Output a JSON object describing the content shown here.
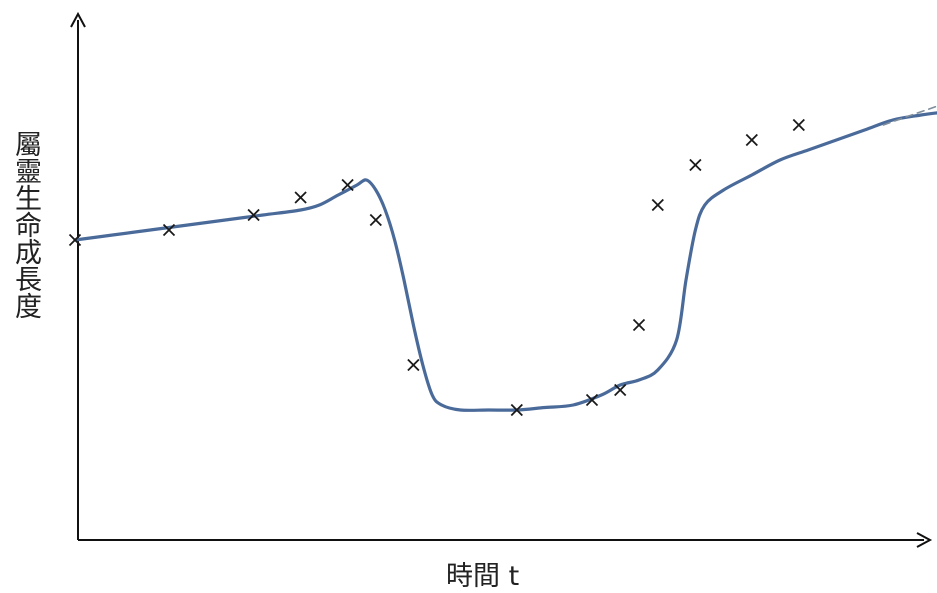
{
  "chart_data": {
    "type": "line",
    "xlabel": "時間 t",
    "ylabel": "屬靈生命成長度",
    "xlim": [
      0,
      100
    ],
    "ylim": [
      0,
      100
    ],
    "grid": false,
    "series": [
      {
        "style": "solid",
        "color": "#4a6a9a",
        "points": [
          [
            0,
            60
          ],
          [
            4,
            61
          ],
          [
            8,
            62
          ],
          [
            12,
            63
          ],
          [
            16,
            64
          ],
          [
            20,
            65
          ],
          [
            24,
            66
          ],
          [
            26,
            67
          ],
          [
            28,
            69
          ],
          [
            30,
            71
          ],
          [
            31,
            72
          ],
          [
            32,
            70
          ],
          [
            33,
            66
          ],
          [
            34,
            60
          ],
          [
            35,
            52
          ],
          [
            36,
            43
          ],
          [
            37,
            35
          ],
          [
            38,
            29
          ],
          [
            39,
            27
          ],
          [
            41,
            26
          ],
          [
            44,
            26
          ],
          [
            47,
            26
          ],
          [
            50,
            26.5
          ],
          [
            53,
            27
          ],
          [
            56,
            29
          ],
          [
            58,
            31
          ],
          [
            60,
            32
          ],
          [
            62,
            34
          ],
          [
            64,
            40
          ],
          [
            65,
            52
          ],
          [
            66,
            62
          ],
          [
            67,
            67
          ],
          [
            69,
            70
          ],
          [
            72,
            73
          ],
          [
            75,
            76
          ],
          [
            78,
            78
          ],
          [
            81,
            80
          ],
          [
            84,
            82
          ],
          [
            87,
            84
          ],
          [
            90,
            85
          ],
          [
            92,
            85.5
          ],
          [
            94,
            86
          ]
        ]
      },
      {
        "style": "dashed",
        "color": "#7f8e9c",
        "points": [
          [
            86,
            83
          ],
          [
            89,
            85
          ],
          [
            92,
            87
          ],
          [
            94,
            89
          ],
          [
            96,
            91
          ],
          [
            98,
            94
          ]
        ]
      }
    ],
    "markers": {
      "symbol": "x",
      "points": [
        [
          0,
          60
        ],
        [
          10,
          62
        ],
        [
          19,
          65
        ],
        [
          24,
          68.5
        ],
        [
          29,
          71
        ],
        [
          32,
          64
        ],
        [
          36,
          35
        ],
        [
          47,
          26
        ],
        [
          55,
          28
        ],
        [
          58,
          30
        ],
        [
          60,
          43
        ],
        [
          62,
          67
        ],
        [
          66,
          75
        ],
        [
          72,
          80
        ],
        [
          77,
          83
        ]
      ]
    }
  }
}
